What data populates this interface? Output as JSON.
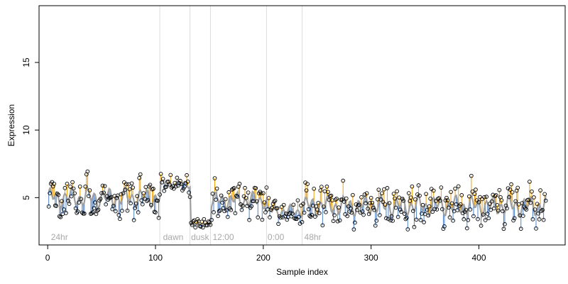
{
  "chart_data": {
    "type": "scatter",
    "title": "",
    "xlabel": "Sample index",
    "ylabel": "Expression",
    "xlim": [
      -8,
      480
    ],
    "ylim": [
      1.5,
      19.2
    ],
    "x_ticks": [
      0,
      100,
      200,
      300,
      400
    ],
    "y_ticks": [
      5,
      10,
      15
    ],
    "grid": false,
    "legend": "none",
    "colors": {
      "above_fit": "#f0a30a",
      "below_fit": "#4f84c9",
      "fit_line": "#a0a0a0",
      "points": "#000000",
      "phase_lines": "#dcdcdc",
      "phase_labels": "#a8a8a8"
    },
    "phase_boundaries": [
      104,
      132,
      151,
      203,
      236
    ],
    "phase_labels": [
      {
        "x": 3,
        "label": "24hr"
      },
      {
        "x": 107,
        "label": "dawn"
      },
      {
        "x": 133,
        "label": "dusk"
      },
      {
        "x": 153,
        "label": "12:00"
      },
      {
        "x": 204,
        "label": "0:00"
      },
      {
        "x": 238,
        "label": "48hr"
      }
    ],
    "segments": [
      {
        "x_start": 1,
        "x_end": 104,
        "fit": 5.0,
        "amplitude": 1.3
      },
      {
        "x_start": 105,
        "x_end": 132,
        "fit": 6.0,
        "amplitude": 0.5
      },
      {
        "x_start": 133,
        "x_end": 151,
        "fit": 3.0,
        "amplitude": 0.4
      },
      {
        "x_start": 152,
        "x_end": 203,
        "fit": 4.8,
        "amplitude": 1.1
      },
      {
        "x_start": 204,
        "x_end": 236,
        "fit": 4.0,
        "amplitude": 0.8
      },
      {
        "x_start": 237,
        "x_end": 462,
        "fit": 4.4,
        "amplitude": 1.3
      }
    ],
    "n_points": 462
  }
}
